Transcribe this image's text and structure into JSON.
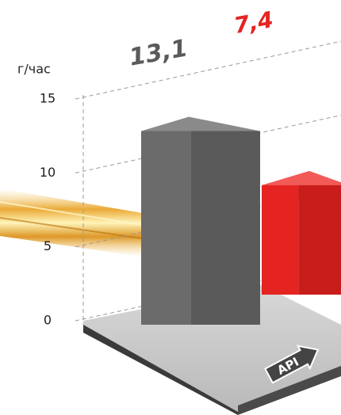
{
  "chart_data": {
    "type": "bar",
    "y_label": "г/час",
    "categories": [
      null,
      null
    ],
    "series": [
      {
        "name": null,
        "values": [
          13.1,
          7.4
        ],
        "value_labels": [
          "13,1",
          "7,4"
        ],
        "colors": [
          "#6b6b6b",
          "#e52421"
        ],
        "label_colors": [
          "#5a5a5a",
          "#e52421"
        ]
      }
    ],
    "ylim": [
      0,
      15
    ],
    "yticks": [
      0,
      5,
      10,
      15
    ],
    "grid": true,
    "annotations": [
      "API"
    ]
  }
}
